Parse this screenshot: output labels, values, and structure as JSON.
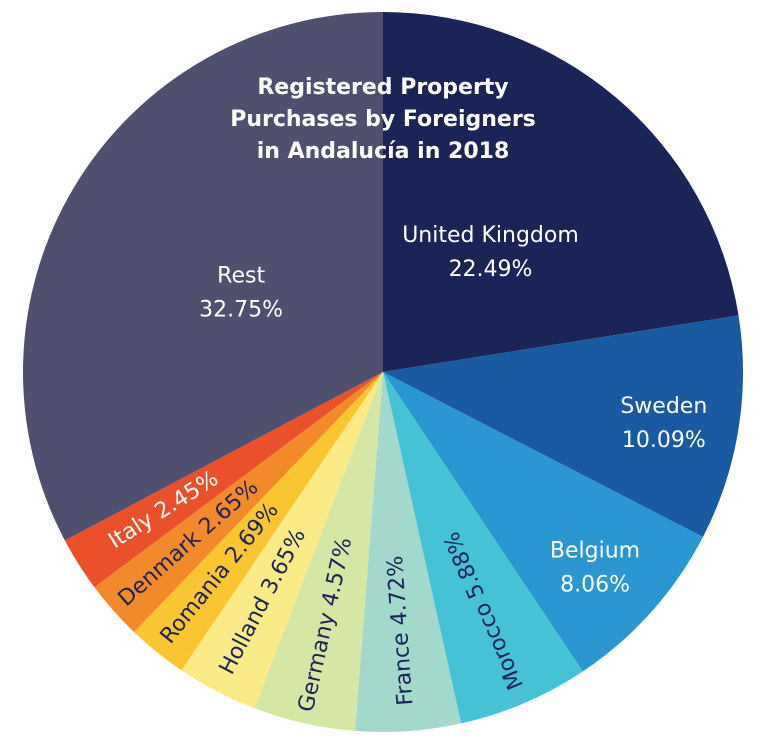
{
  "chart_data": {
    "type": "pie",
    "title_lines": [
      "Registered Property",
      "Purchases by Foreigners",
      "in Andalucía in 2018"
    ],
    "unit": "%",
    "slices": [
      {
        "label": "United Kingdom",
        "value": 22.49,
        "value_text": "22.49%",
        "color": "#1b2456",
        "text_color": "#ffffff"
      },
      {
        "label": "Sweden",
        "value": 10.09,
        "value_text": "10.09%",
        "color": "#1a5aa3",
        "text_color": "#ffffff"
      },
      {
        "label": "Belgium",
        "value": 8.06,
        "value_text": "8.06%",
        "color": "#2a97d2",
        "text_color": "#ffffff"
      },
      {
        "label": "Morocco",
        "value": 5.88,
        "value_text": "5.88%",
        "color": "#45c2d6",
        "text_color": "#1b2456"
      },
      {
        "label": "France",
        "value": 4.72,
        "value_text": "4.72%",
        "color": "#a3d9cc",
        "text_color": "#1b2456"
      },
      {
        "label": "Germany",
        "value": 4.57,
        "value_text": "4.57%",
        "color": "#d6e6a5",
        "text_color": "#1b2456"
      },
      {
        "label": "Holland",
        "value": 3.65,
        "value_text": "3.65%",
        "color": "#fbeb86",
        "text_color": "#1b2456"
      },
      {
        "label": "Romania",
        "value": 2.69,
        "value_text": "2.69%",
        "color": "#f9c531",
        "text_color": "#1b2456"
      },
      {
        "label": "Denmark",
        "value": 2.65,
        "value_text": "2.65%",
        "color": "#f28a2c",
        "text_color": "#1b2456"
      },
      {
        "label": "Italy",
        "value": 2.45,
        "value_text": "2.45%",
        "color": "#ea502a",
        "text_color": "#ffffff"
      },
      {
        "label": "Rest",
        "value": 32.75,
        "value_text": "32.75%",
        "color": "#4f4f70",
        "text_color": "#ffffff"
      }
    ]
  }
}
